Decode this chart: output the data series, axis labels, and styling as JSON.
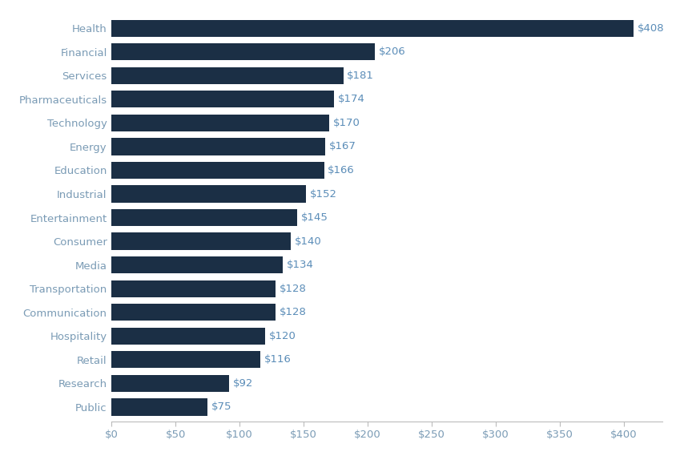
{
  "categories": [
    "Health",
    "Financial",
    "Services",
    "Pharmaceuticals",
    "Technology",
    "Energy",
    "Education",
    "Industrial",
    "Entertainment",
    "Consumer",
    "Media",
    "Transportation",
    "Communication",
    "Hospitality",
    "Retail",
    "Research",
    "Public"
  ],
  "values": [
    408,
    206,
    181,
    174,
    170,
    167,
    166,
    152,
    145,
    140,
    134,
    128,
    128,
    120,
    116,
    92,
    75
  ],
  "bar_color": "#1b2f45",
  "label_color": "#5b8db8",
  "axis_label_color": "#7a9bb5",
  "background_color": "#ffffff",
  "bar_height": 0.72,
  "xlim": [
    0,
    430
  ],
  "xticks": [
    0,
    50,
    100,
    150,
    200,
    250,
    300,
    350,
    400
  ],
  "xtick_labels": [
    "$0",
    "$50",
    "$100",
    "$150",
    "$200",
    "$250",
    "$300",
    "$350",
    "$400"
  ],
  "label_fontsize": 9.5,
  "tick_fontsize": 9.5,
  "value_label_fontsize": 9.5
}
